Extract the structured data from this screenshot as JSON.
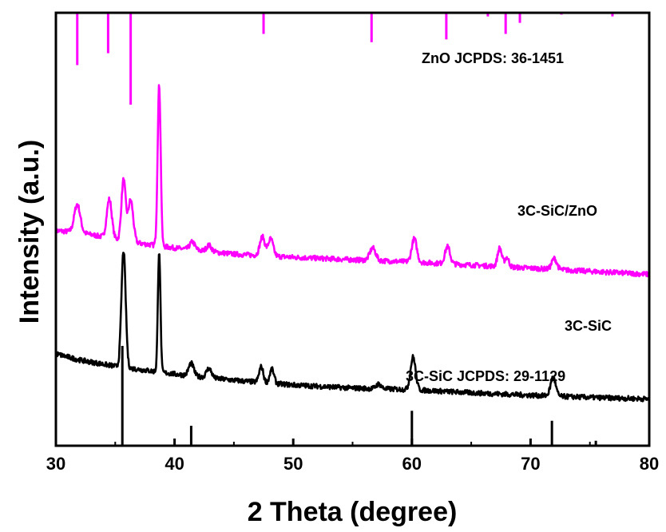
{
  "chart_data": {
    "type": "line",
    "title": "",
    "xlabel": "2 Theta (degree)",
    "ylabel": "Intensity (a.u.)",
    "xlim": [
      30,
      80
    ],
    "x_ticks": [
      "30",
      "40",
      "50",
      "60",
      "70",
      "80"
    ],
    "grid": false,
    "colors": {
      "zno": "#ff00ff",
      "sic": "#000000"
    },
    "series": [
      {
        "name": "3C-SiC/ZnO",
        "color": "#ff00ff",
        "baseline": [
          [
            30,
            6.9
          ],
          [
            32,
            6.85
          ],
          [
            36,
            6.55
          ],
          [
            40,
            6.35
          ],
          [
            45,
            6.15
          ],
          [
            50,
            6.05
          ],
          [
            55,
            5.97
          ],
          [
            60,
            5.9
          ],
          [
            65,
            5.8
          ],
          [
            70,
            5.7
          ],
          [
            75,
            5.6
          ],
          [
            80,
            5.5
          ]
        ],
        "peaks": [
          {
            "x": 31.8,
            "h": 0.9,
            "w": 0.35
          },
          {
            "x": 34.5,
            "h": 1.25,
            "w": 0.3
          },
          {
            "x": 35.7,
            "h": 1.95,
            "w": 0.25
          },
          {
            "x": 36.3,
            "h": 1.35,
            "w": 0.3
          },
          {
            "x": 38.7,
            "h": 5.15,
            "w": 0.18
          },
          {
            "x": 41.5,
            "h": 0.25,
            "w": 0.3
          },
          {
            "x": 42.9,
            "h": 0.2,
            "w": 0.3
          },
          {
            "x": 47.4,
            "h": 0.6,
            "w": 0.3
          },
          {
            "x": 48.1,
            "h": 0.55,
            "w": 0.3
          },
          {
            "x": 56.7,
            "h": 0.4,
            "w": 0.35
          },
          {
            "x": 60.2,
            "h": 0.75,
            "w": 0.3
          },
          {
            "x": 63.0,
            "h": 0.55,
            "w": 0.3
          },
          {
            "x": 67.4,
            "h": 0.6,
            "w": 0.25
          },
          {
            "x": 68.0,
            "h": 0.3,
            "w": 0.25
          },
          {
            "x": 72.0,
            "h": 0.35,
            "w": 0.3
          }
        ]
      },
      {
        "name": "3C-SiC",
        "color": "#000000",
        "baseline": [
          [
            30,
            2.95
          ],
          [
            32,
            2.75
          ],
          [
            35,
            2.55
          ],
          [
            40,
            2.3
          ],
          [
            45,
            2.1
          ],
          [
            50,
            1.95
          ],
          [
            55,
            1.85
          ],
          [
            60,
            1.8
          ],
          [
            65,
            1.7
          ],
          [
            70,
            1.62
          ],
          [
            75,
            1.55
          ],
          [
            80,
            1.5
          ]
        ],
        "peaks": [
          {
            "x": 35.7,
            "h": 3.75,
            "w": 0.25
          },
          {
            "x": 38.7,
            "h": 3.9,
            "w": 0.15
          },
          {
            "x": 41.4,
            "h": 0.4,
            "w": 0.3
          },
          {
            "x": 42.9,
            "h": 0.3,
            "w": 0.3
          },
          {
            "x": 47.3,
            "h": 0.5,
            "w": 0.25
          },
          {
            "x": 48.2,
            "h": 0.45,
            "w": 0.25
          },
          {
            "x": 57.2,
            "h": 0.15,
            "w": 0.3
          },
          {
            "x": 60.1,
            "h": 1.05,
            "w": 0.3
          },
          {
            "x": 71.9,
            "h": 0.6,
            "w": 0.3
          }
        ]
      }
    ],
    "reference_patterns": [
      {
        "label": "ZnO JCPDS: 36-1451",
        "color": "#ff00ff",
        "lines": [
          {
            "x": 31.8,
            "intensity": 57
          },
          {
            "x": 34.4,
            "intensity": 44
          },
          {
            "x": 36.3,
            "intensity": 100
          },
          {
            "x": 47.5,
            "intensity": 23
          },
          {
            "x": 56.6,
            "intensity": 32
          },
          {
            "x": 62.9,
            "intensity": 29
          },
          {
            "x": 66.4,
            "intensity": 4
          },
          {
            "x": 67.9,
            "intensity": 23
          },
          {
            "x": 69.1,
            "intensity": 11
          },
          {
            "x": 72.6,
            "intensity": 2
          },
          {
            "x": 76.9,
            "intensity": 4
          }
        ]
      },
      {
        "label": "3C-SiC JCPDS: 29-1129",
        "color": "#000000",
        "lines": [
          {
            "x": 35.6,
            "intensity": 100
          },
          {
            "x": 41.4,
            "intensity": 20
          },
          {
            "x": 60.0,
            "intensity": 35
          },
          {
            "x": 71.8,
            "intensity": 25
          },
          {
            "x": 75.5,
            "intensity": 5
          }
        ]
      }
    ],
    "annotations": [
      "3C-SiC/ZnO",
      "3C-SiC"
    ]
  }
}
